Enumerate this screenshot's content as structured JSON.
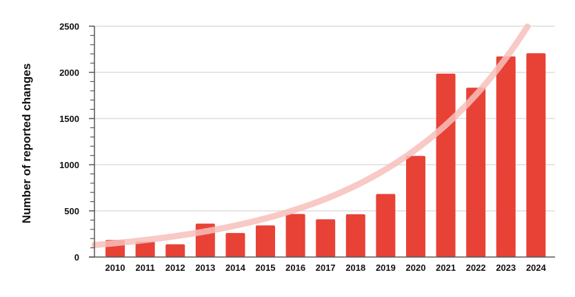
{
  "chart_data": {
    "type": "bar",
    "title": "",
    "xlabel": "",
    "ylabel": "Number of reported changes",
    "ylim": [
      0,
      2500
    ],
    "yticks": [
      0,
      500,
      1000,
      1500,
      2000,
      2500
    ],
    "grid": true,
    "categories": [
      "2010",
      "2011",
      "2012",
      "2013",
      "2014",
      "2015",
      "2016",
      "2017",
      "2018",
      "2019",
      "2020",
      "2021",
      "2022",
      "2023",
      "2024"
    ],
    "values": [
      185,
      168,
      138,
      362,
      260,
      342,
      466,
      409,
      464,
      683,
      1095,
      1986,
      1834,
      2173,
      2207
    ],
    "trendline": {
      "type": "exponential",
      "start_value_2010": 150,
      "growth_rate_per_year": 0.205
    },
    "colors": {
      "bar": "#e84236",
      "trend": "#f7c0bb",
      "grid": "#dddddd",
      "axis": "#555555"
    }
  }
}
